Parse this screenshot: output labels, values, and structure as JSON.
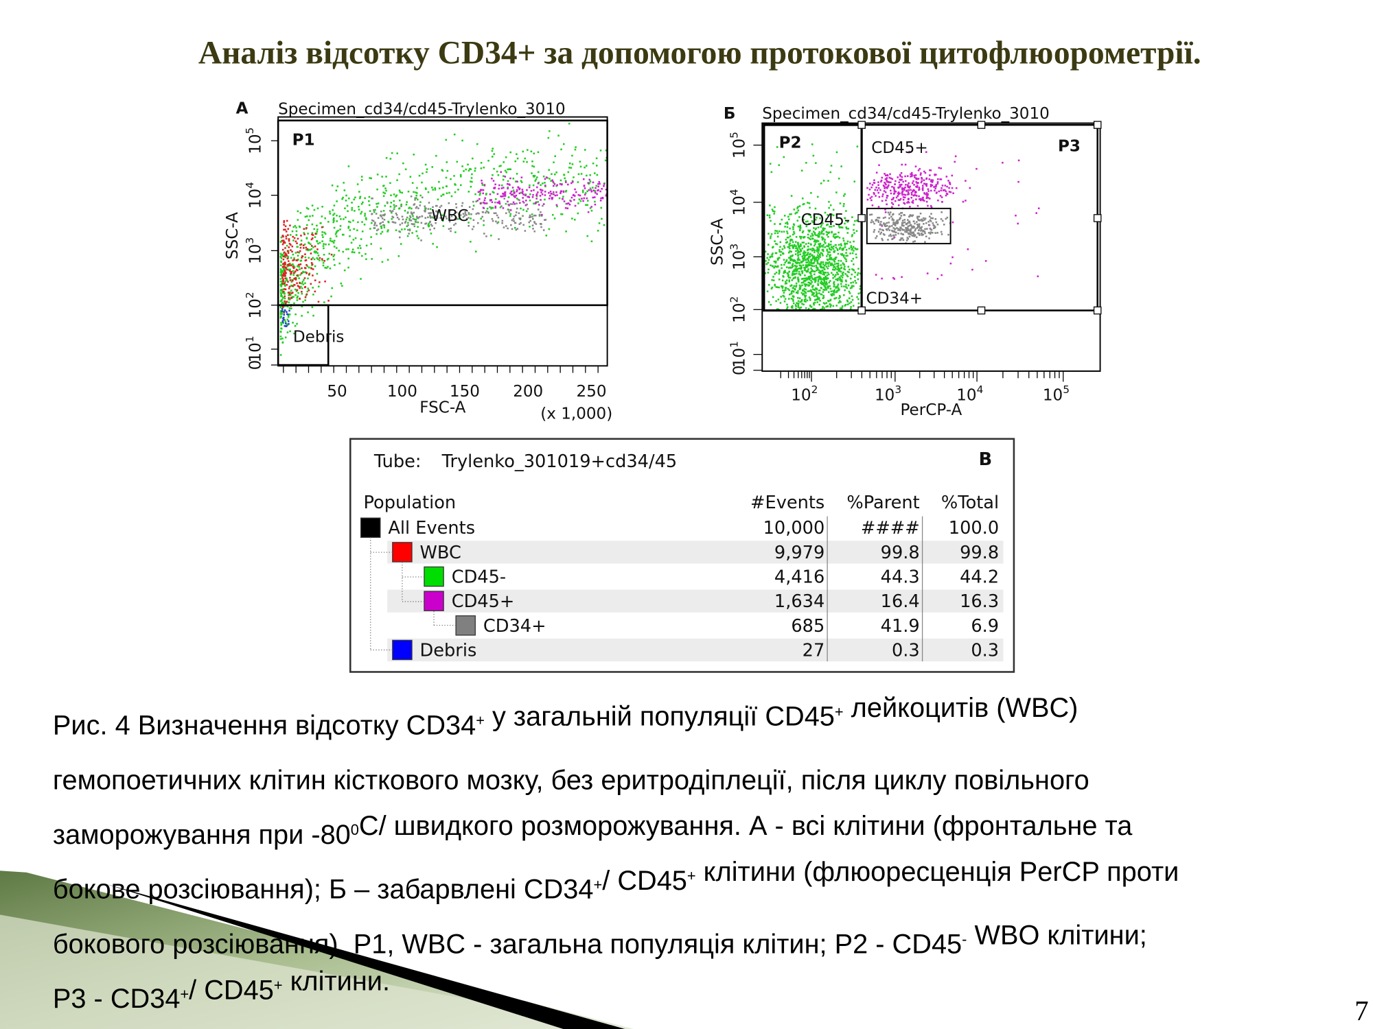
{
  "title": "Аналіз відсотку CD34+ за допомогою протокової цитофлюорометрії.",
  "panel_a": {
    "letter": "A",
    "specimen": "Specimen_cd34/cd45-Trylenko_3010",
    "gates": [
      "P1",
      "WBC",
      "Debris"
    ],
    "y_axis": "SSC-A",
    "x_axis": "FSC-A",
    "x_scale": "(x 1,000)",
    "xticks": [
      "50",
      "100",
      "150",
      "200",
      "250"
    ],
    "yticks": [
      "0",
      {
        "base": "10",
        "exp": "1"
      },
      {
        "base": "10",
        "exp": "2"
      },
      {
        "base": "10",
        "exp": "3"
      },
      {
        "base": "10",
        "exp": "4"
      },
      {
        "base": "10",
        "exp": "5"
      }
    ]
  },
  "panel_b": {
    "letter": "Б",
    "specimen": "Specimen_cd34/cd45-Trylenko_3010",
    "gates": [
      "P2",
      "P3",
      "CD45+",
      "CD45-",
      "CD34+"
    ],
    "y_axis": "SSC-A",
    "x_axis": "PerCP-A",
    "xticks": [
      {
        "base": "10",
        "exp": "2"
      },
      {
        "base": "10",
        "exp": "3"
      },
      {
        "base": "10",
        "exp": "4"
      },
      {
        "base": "10",
        "exp": "5"
      }
    ],
    "yticks": [
      "0",
      {
        "base": "10",
        "exp": "1"
      },
      {
        "base": "10",
        "exp": "2"
      },
      {
        "base": "10",
        "exp": "3"
      },
      {
        "base": "10",
        "exp": "4"
      },
      {
        "base": "10",
        "exp": "5"
      }
    ]
  },
  "table": {
    "tube_label": "Tube:",
    "tube": "Trylenko_301019+cd34/45",
    "letter": "В",
    "header": [
      "Population",
      "#Events",
      "%Parent",
      "%Total"
    ],
    "rows": [
      [
        "All Events",
        "10,000",
        "####",
        "100.0"
      ],
      [
        "WBC",
        "9,979",
        "99.8",
        "99.8"
      ],
      [
        "CD45-",
        "4,416",
        "44.3",
        "44.2"
      ],
      [
        "CD45+",
        "1,634",
        "16.4",
        "16.3"
      ],
      [
        "CD34+",
        "685",
        "41.9",
        "6.9"
      ],
      [
        "Debris",
        "27",
        "0.3",
        "0.3"
      ]
    ],
    "row_colors": [
      "#000000",
      "#ff0000",
      "#00dd00",
      "#cc00cc",
      "#808080",
      "#0000ff"
    ]
  },
  "caption": [
    [
      {
        "t": "Рис. 4 Визначення відсотку CD34"
      },
      {
        "sup": "+"
      },
      {
        "t": " у загальній популяції CD45"
      },
      {
        "sup": "+"
      },
      {
        "t": " лейкоцитів (WBC)"
      }
    ],
    [
      {
        "t": "гемопоетичних клітин кісткового мозку, без еритродіплеції, після циклу повільного"
      }
    ],
    [
      {
        "t": "заморожування при -80"
      },
      {
        "sup": "0"
      },
      {
        "t": "С/ швидкого розморожування. А - всі клітини (фронтальне та"
      }
    ],
    [
      {
        "t": "бокове розсіювання); Б – забарвлені CD34"
      },
      {
        "sup": "+"
      },
      {
        "t": "/ CD45"
      },
      {
        "sup": "+"
      },
      {
        "t": " клітини (флюоресценція PerCP проти"
      }
    ],
    [
      {
        "t": "бокового розсіювання). P1, WBC - загальна популяція клітин; P2 - CD45"
      },
      {
        "sup": "-"
      },
      {
        "t": " WBO клітини;"
      }
    ],
    [
      {
        "t": "P3 - CD34"
      },
      {
        "sup": "+"
      },
      {
        "t": "/ CD45"
      },
      {
        "sup": "+"
      },
      {
        "t": " клітини."
      }
    ]
  ],
  "page_number": "7"
}
